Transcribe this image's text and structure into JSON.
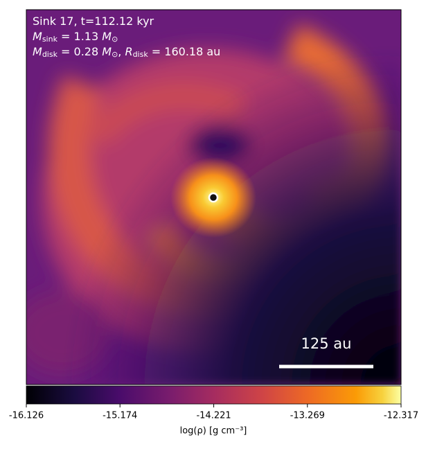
{
  "chart_data": {
    "type": "density-map",
    "annotation_lines": [
      [
        {
          "text": "Sink 17, t=112.12 kyr"
        }
      ],
      [
        {
          "text": "M"
        },
        {
          "text": "sink",
          "sub": true
        },
        {
          "text": " = 1.13 "
        },
        {
          "text": "M"
        },
        {
          "text": "⊙",
          "sub": true
        }
      ],
      [
        {
          "text": "M"
        },
        {
          "text": "disk",
          "sub": true
        },
        {
          "text": " = 0.28 "
        },
        {
          "text": "M"
        },
        {
          "text": "⊙",
          "sub": true
        },
        {
          "text": ", "
        },
        {
          "text": "R"
        },
        {
          "text": "disk",
          "sub": true
        },
        {
          "text": " = 160.18 au"
        }
      ]
    ],
    "scale_bar_label": "125 au",
    "colorbar": {
      "label": "log(ρ) [g cm⁻³]",
      "xlim": [
        -16.126,
        -12.317
      ],
      "xticks": [
        -16.126,
        -15.174,
        -14.221,
        -13.269,
        -12.317
      ],
      "colormap": "inferno"
    }
  }
}
